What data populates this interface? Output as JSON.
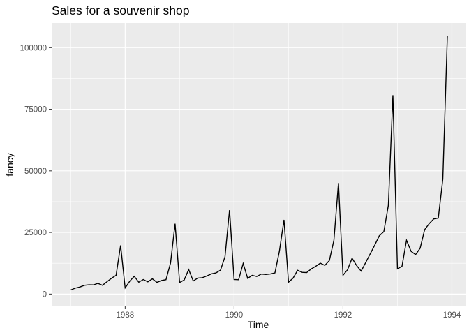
{
  "chart_data": {
    "type": "line",
    "title": "Sales for a souvenir shop",
    "xlabel": "Time",
    "ylabel": "fancy",
    "xlim": [
      1986.65,
      1994.25
    ],
    "ylim": [
      -5000,
      110000
    ],
    "x_start": 1987.0,
    "x_step": 0.0833333,
    "x_ticks": [
      1988,
      1990,
      1992,
      1994
    ],
    "x_tick_labels": [
      "1988",
      "1990",
      "1992",
      "1994"
    ],
    "y_ticks": [
      0,
      25000,
      50000,
      75000,
      100000
    ],
    "y_tick_labels": [
      "0",
      "25000",
      "50000",
      "75000",
      "100000"
    ],
    "grid": true,
    "panel_background": "#ebebeb",
    "grid_color": "#ffffff",
    "line_color": "#000000",
    "series": [
      {
        "values": [
          1664,
          2398,
          2841,
          3547,
          3753,
          3715,
          4350,
          3566,
          5022,
          6423,
          7601,
          19756,
          2499,
          5198,
          7225,
          4807,
          5900,
          4951,
          6179,
          4752,
          5496,
          5836,
          12600,
          28542,
          4717,
          5703,
          9957,
          5304,
          6492,
          6631,
          7350,
          8177,
          8574,
          9690,
          15152,
          34062,
          5921,
          5815,
          12422,
          6370,
          7610,
          7145,
          8123,
          7932,
          8150,
          8570,
          17523,
          30114,
          4827,
          6470,
          9639,
          8822,
          8722,
          10209,
          11277,
          12553,
          11638,
          13607,
          21822,
          45061,
          7615,
          9850,
          14559,
          11588,
          9333,
          12784,
          16323,
          19866,
          23662,
          25347,
          36024,
          80721,
          10243,
          11267,
          21827,
          17358,
          16022,
          18601,
          26155,
          28587,
          30505,
          30821,
          46634,
          104661
        ]
      }
    ]
  }
}
